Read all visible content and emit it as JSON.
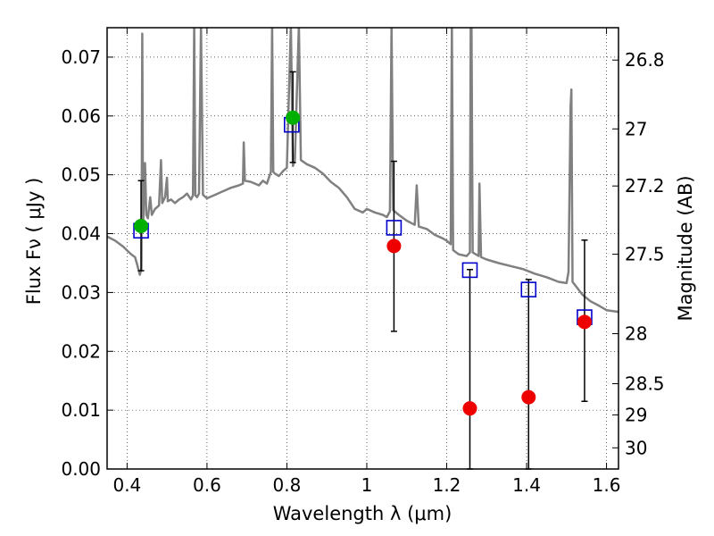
{
  "chart_data": {
    "type": "scatter",
    "xlabel": "Wavelength  λ (μm)",
    "ylabel": "Flux  Fν (  μJy )",
    "y2label": "Magnitude (AB)",
    "xlim": [
      0.35,
      1.63
    ],
    "ylim": [
      0.0,
      0.075
    ],
    "grid": true,
    "x_ticks": [
      0.4,
      0.6,
      0.8,
      1.0,
      1.2,
      1.4,
      1.6
    ],
    "x_tick_labels": [
      "0.4",
      "0.6",
      "0.8",
      "1",
      "1.2",
      "1.4",
      "1.6"
    ],
    "y_ticks": [
      0.0,
      0.01,
      0.02,
      0.03,
      0.04,
      0.05,
      0.06,
      0.07
    ],
    "y_tick_labels": [
      "0.00",
      "0.01",
      "0.02",
      "0.03",
      "0.04",
      "0.05",
      "0.06",
      "0.07"
    ],
    "y2_ticks": [
      {
        "label": "26.8",
        "flux": 0.0695
      },
      {
        "label": "27",
        "flux": 0.0578
      },
      {
        "label": "27.2",
        "flux": 0.0481
      },
      {
        "label": "27.5",
        "flux": 0.0365
      },
      {
        "label": "28",
        "flux": 0.023
      },
      {
        "label": "28.5",
        "flux": 0.0145
      },
      {
        "label": "29",
        "flux": 0.0092
      },
      {
        "label": "30",
        "flux": 0.0036
      }
    ],
    "series": [
      {
        "kind": "line",
        "color": "#808080",
        "points": [
          [
            0.35,
            0.0395
          ],
          [
            0.37,
            0.0388
          ],
          [
            0.39,
            0.0378
          ],
          [
            0.41,
            0.0365
          ],
          [
            0.42,
            0.036
          ],
          [
            0.425,
            0.0348
          ],
          [
            0.432,
            0.033
          ],
          [
            0.436,
            0.034
          ],
          [
            0.438,
            0.074
          ],
          [
            0.44,
            0.041
          ],
          [
            0.445,
            0.052
          ],
          [
            0.448,
            0.0432
          ],
          [
            0.452,
            0.0426
          ],
          [
            0.458,
            0.0462
          ],
          [
            0.462,
            0.0432
          ],
          [
            0.47,
            0.0442
          ],
          [
            0.48,
            0.0448
          ],
          [
            0.485,
            0.0525
          ],
          [
            0.488,
            0.0452
          ],
          [
            0.495,
            0.0462
          ],
          [
            0.5,
            0.0495
          ],
          [
            0.502,
            0.0455
          ],
          [
            0.51,
            0.0458
          ],
          [
            0.52,
            0.0452
          ],
          [
            0.53,
            0.0458
          ],
          [
            0.54,
            0.0462
          ],
          [
            0.55,
            0.0468
          ],
          [
            0.56,
            0.0458
          ],
          [
            0.565,
            0.0465
          ],
          [
            0.568,
            0.0755
          ],
          [
            0.571,
            0.0465
          ],
          [
            0.575,
            0.0462
          ],
          [
            0.58,
            0.0468
          ],
          [
            0.585,
            0.0755
          ],
          [
            0.59,
            0.0466
          ],
          [
            0.6,
            0.046
          ],
          [
            0.62,
            0.0466
          ],
          [
            0.64,
            0.0472
          ],
          [
            0.66,
            0.0478
          ],
          [
            0.68,
            0.0482
          ],
          [
            0.69,
            0.0485
          ],
          [
            0.692,
            0.0555
          ],
          [
            0.695,
            0.049
          ],
          [
            0.71,
            0.0488
          ],
          [
            0.73,
            0.0482
          ],
          [
            0.74,
            0.049
          ],
          [
            0.75,
            0.0485
          ],
          [
            0.76,
            0.0505
          ],
          [
            0.763,
            0.0755
          ],
          [
            0.766,
            0.0505
          ],
          [
            0.77,
            0.0502
          ],
          [
            0.78,
            0.0498
          ],
          [
            0.79,
            0.0506
          ],
          [
            0.8,
            0.0512
          ],
          [
            0.81,
            0.0755
          ],
          [
            0.815,
            0.0515
          ],
          [
            0.82,
            0.0525
          ],
          [
            0.83,
            0.0755
          ],
          [
            0.835,
            0.0525
          ],
          [
            0.85,
            0.0518
          ],
          [
            0.87,
            0.0512
          ],
          [
            0.89,
            0.0502
          ],
          [
            0.91,
            0.0488
          ],
          [
            0.93,
            0.0478
          ],
          [
            0.95,
            0.0462
          ],
          [
            0.97,
            0.0442
          ],
          [
            0.99,
            0.0436
          ],
          [
            1.0,
            0.0442
          ],
          [
            1.02,
            0.0436
          ],
          [
            1.04,
            0.0432
          ],
          [
            1.05,
            0.0428
          ],
          [
            1.058,
            0.0438
          ],
          [
            1.062,
            0.0755
          ],
          [
            1.066,
            0.044
          ],
          [
            1.08,
            0.0432
          ],
          [
            1.1,
            0.0422
          ],
          [
            1.12,
            0.0415
          ],
          [
            1.125,
            0.0482
          ],
          [
            1.13,
            0.0412
          ],
          [
            1.15,
            0.0408
          ],
          [
            1.17,
            0.0398
          ],
          [
            1.19,
            0.0392
          ],
          [
            1.2,
            0.0388
          ],
          [
            1.21,
            0.0382
          ],
          [
            1.213,
            0.0755
          ],
          [
            1.216,
            0.0372
          ],
          [
            1.23,
            0.0365
          ],
          [
            1.25,
            0.0362
          ],
          [
            1.258,
            0.0368
          ],
          [
            1.26,
            0.0755
          ],
          [
            1.262,
            0.0755
          ],
          [
            1.265,
            0.0368
          ],
          [
            1.28,
            0.0362
          ],
          [
            1.282,
            0.0485
          ],
          [
            1.286,
            0.036
          ],
          [
            1.3,
            0.0356
          ],
          [
            1.33,
            0.035
          ],
          [
            1.36,
            0.0345
          ],
          [
            1.39,
            0.034
          ],
          [
            1.42,
            0.0332
          ],
          [
            1.45,
            0.0326
          ],
          [
            1.48,
            0.0318
          ],
          [
            1.5,
            0.0316
          ],
          [
            1.505,
            0.0335
          ],
          [
            1.51,
            0.0615
          ],
          [
            1.512,
            0.0645
          ],
          [
            1.515,
            0.0318
          ],
          [
            1.54,
            0.0296
          ],
          [
            1.56,
            0.0285
          ],
          [
            1.58,
            0.0278
          ],
          [
            1.6,
            0.027
          ],
          [
            1.63,
            0.0267
          ]
        ]
      },
      {
        "kind": "open-square",
        "color": "#0000cc",
        "points": [
          [
            0.435,
            0.0405
          ],
          [
            0.812,
            0.0585
          ],
          [
            1.068,
            0.041
          ],
          [
            1.258,
            0.0338
          ],
          [
            1.405,
            0.0305
          ],
          [
            1.545,
            0.0258
          ]
        ]
      },
      {
        "kind": "filled-circle",
        "color": "#00b000",
        "points": [
          [
            0.435,
            0.0413
          ],
          [
            0.815,
            0.0597
          ]
        ]
      },
      {
        "kind": "filled-circle",
        "color": "#ee0000",
        "points": [
          [
            1.068,
            0.0379
          ],
          [
            1.258,
            0.0103
          ],
          [
            1.405,
            0.0122
          ],
          [
            1.545,
            0.025
          ]
        ]
      },
      {
        "kind": "errorbar",
        "color": "#000000",
        "bars": [
          {
            "x": 0.435,
            "low": 0.0337,
            "high": 0.049
          },
          {
            "x": 0.815,
            "low": 0.0521,
            "high": 0.0675
          },
          {
            "x": 1.068,
            "low": 0.0234,
            "high": 0.0523
          },
          {
            "x": 1.258,
            "low": 0.0,
            "high": 0.0339
          },
          {
            "x": 1.405,
            "low": 0.0,
            "high": 0.0322
          },
          {
            "x": 1.545,
            "low": 0.0115,
            "high": 0.0389
          }
        ]
      }
    ]
  }
}
